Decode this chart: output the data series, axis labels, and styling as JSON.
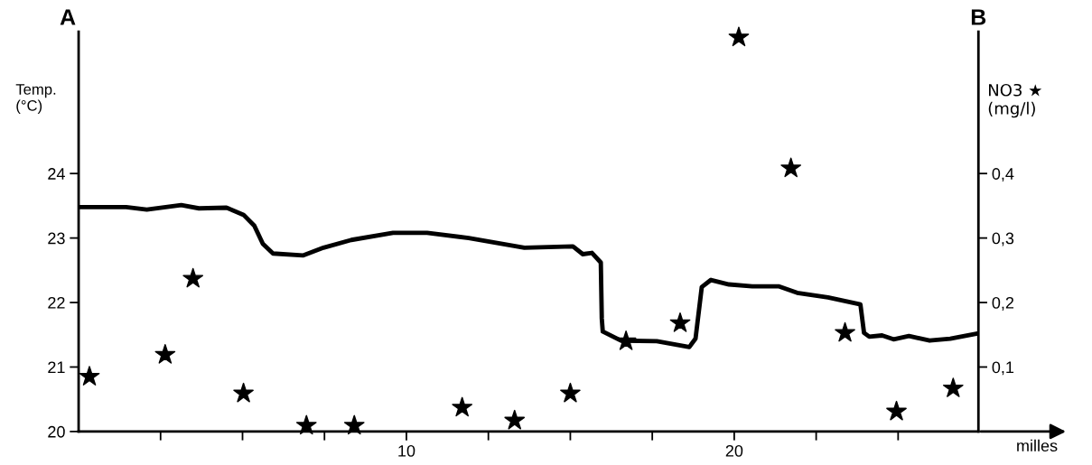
{
  "chart_data": {
    "type": "line",
    "xlabel": "milles",
    "ylabel": "Temp.\n(°C)",
    "y2label": "NO3 ★\n(mg/l)",
    "annotations": [
      "A",
      "B"
    ],
    "xlim": [
      0,
      27.45
    ],
    "xticks": [
      {
        "value": 2.5,
        "label": null
      },
      {
        "value": 5,
        "label": null
      },
      {
        "value": 7.5,
        "label": null
      },
      {
        "value": 10,
        "label": "10"
      },
      {
        "value": 12.5,
        "label": null
      },
      {
        "value": 15,
        "label": null
      },
      {
        "value": 17.5,
        "label": null
      },
      {
        "value": 20,
        "label": "20"
      },
      {
        "value": 22.5,
        "label": null
      },
      {
        "value": 25,
        "label": null
      }
    ],
    "ylim": [
      20,
      26.2
    ],
    "yticks": [
      20,
      21,
      22,
      23,
      24
    ],
    "y2lim": [
      0,
      0.62
    ],
    "y2ticks": [
      {
        "value": 0.1,
        "label": "0,1"
      },
      {
        "value": 0.2,
        "label": "0,2"
      },
      {
        "value": 0.3,
        "label": "0,3"
      },
      {
        "value": 0.4,
        "label": "0,4"
      }
    ],
    "grid": false,
    "series": [
      {
        "color": "#000000",
        "marker": "none",
        "line_style": "solid",
        "x": [
          0,
          1.45,
          2.08,
          3.13,
          3.67,
          4.51,
          5.03,
          5.36,
          5.62,
          5.93,
          6.84,
          7.47,
          8.32,
          9.59,
          10.63,
          11.9,
          13.6,
          15.08,
          15.38,
          15.66,
          15.93,
          15.96,
          15.99,
          16.54,
          17.64,
          18.63,
          18.82,
          19.01,
          19.29,
          19.84,
          20.55,
          21.37,
          21.92,
          22.86,
          23.85,
          23.96,
          24.12,
          24.51,
          24.86,
          25.33,
          25.96,
          26.59,
          27.42
        ],
        "values": [
          23.48,
          23.48,
          23.44,
          23.51,
          23.46,
          23.47,
          23.36,
          23.19,
          22.91,
          22.76,
          22.73,
          22.85,
          22.97,
          23.08,
          23.08,
          23.0,
          22.85,
          22.87,
          22.75,
          22.77,
          22.62,
          21.75,
          21.55,
          21.41,
          21.4,
          21.31,
          21.44,
          22.24,
          22.35,
          22.28,
          22.25,
          22.25,
          22.15,
          22.08,
          21.97,
          21.53,
          21.47,
          21.49,
          21.43,
          21.48,
          21.41,
          21.44,
          21.52
        ]
      },
      {
        "type": "scatter",
        "axis": "y2",
        "color": "#000000",
        "marker": "star",
        "x": [
          0.33,
          2.64,
          3.49,
          5.03,
          6.95,
          8.41,
          11.7,
          13.3,
          15.0,
          16.7,
          18.35,
          20.14,
          21.73,
          23.38,
          24.95,
          26.68
        ],
        "values": [
          0.085,
          0.119,
          0.237,
          0.059,
          0.009,
          0.009,
          0.037,
          0.017,
          0.059,
          0.14,
          0.168,
          0.611,
          0.408,
          0.153,
          0.031,
          0.067
        ]
      }
    ]
  }
}
